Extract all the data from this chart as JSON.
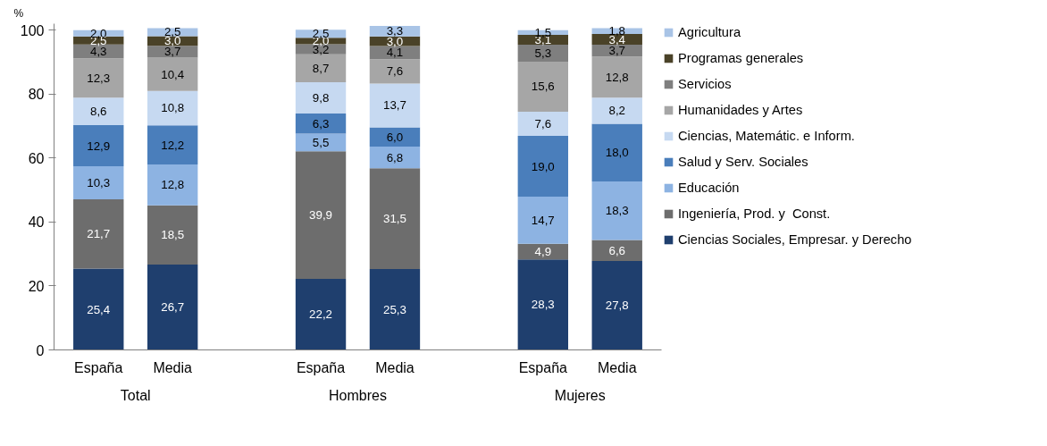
{
  "chart_data": {
    "type": "bar",
    "stacked": true,
    "ylabel": "%",
    "categories": [
      "España",
      "Media",
      null,
      "España",
      "Media",
      null,
      "España",
      "Media"
    ],
    "annotations": [
      "Total",
      "Hombres",
      "Mujeres"
    ],
    "ylim": [
      0,
      102
    ],
    "yticks": [
      0,
      20,
      40,
      60,
      80,
      100
    ],
    "grid": false,
    "legend": "right",
    "series": [
      {
        "name": "Ciencias Sociales, Empresar. y Derecho",
        "color": "#1f3f6e",
        "values": [
          25.4,
          26.7,
          null,
          22.2,
          25.3,
          null,
          28.3,
          27.8
        ],
        "value_labels": [
          "25,4",
          "26,7",
          null,
          "22,2",
          "25,3",
          null,
          "28,3",
          "27,8"
        ]
      },
      {
        "name": "Ingeniería, Prod. y  Const.",
        "color": "#6d6d6d",
        "values": [
          21.7,
          18.5,
          null,
          39.9,
          31.5,
          null,
          4.9,
          6.6
        ],
        "value_labels": [
          "21,7",
          "18,5",
          null,
          "39,9",
          "31,5",
          null,
          "4,9",
          "6,6"
        ]
      },
      {
        "name": "Educación",
        "color": "#8db3e2",
        "values": [
          10.3,
          12.8,
          null,
          5.5,
          6.8,
          null,
          14.7,
          18.3
        ],
        "value_labels": [
          "10,3",
          "12,8",
          null,
          "5,5",
          "6,8",
          null,
          "14,7",
          "18,3"
        ]
      },
      {
        "name": "Salud y Serv. Sociales",
        "color": "#4a7ebb",
        "values": [
          12.9,
          12.2,
          null,
          6.3,
          6.0,
          null,
          19.0,
          18.0
        ],
        "value_labels": [
          "12,9",
          "12,2",
          null,
          "6,3",
          "6,0",
          null,
          "19,0",
          "18,0"
        ]
      },
      {
        "name": "Ciencias, Matemátic. e Inform.",
        "color": "#c6d9f1",
        "values": [
          8.6,
          10.8,
          null,
          9.8,
          13.7,
          null,
          7.6,
          8.2
        ],
        "value_labels": [
          "8,6",
          "10,8",
          null,
          "9,8",
          "13,7",
          null,
          "7,6",
          "8,2"
        ]
      },
      {
        "name": "Humanidades y Artes",
        "color": "#a6a6a6",
        "values": [
          12.3,
          10.4,
          null,
          8.7,
          7.6,
          null,
          15.6,
          12.8
        ],
        "value_labels": [
          "12,3",
          "10,4",
          null,
          "8,7",
          "7,6",
          null,
          "15,6",
          "12,8"
        ]
      },
      {
        "name": "Servicios",
        "color": "#7f7f7f",
        "values": [
          4.3,
          3.7,
          null,
          3.2,
          4.1,
          null,
          5.3,
          3.7
        ],
        "value_labels": [
          "4,3",
          "3,7",
          null,
          "3,2",
          "4,1",
          null,
          "5,3",
          "3,7"
        ]
      },
      {
        "name": "Programas generales",
        "color": "#4a4228",
        "values": [
          2.5,
          3.0,
          null,
          2.0,
          3.0,
          null,
          3.1,
          3.4
        ],
        "value_labels": [
          "2,5",
          "3,0",
          null,
          "2,0",
          "3,0",
          null,
          "3,1",
          "3,4"
        ]
      },
      {
        "name": "Agricultura",
        "color": "#a9c4e6",
        "values": [
          2.0,
          2.5,
          null,
          2.5,
          3.3,
          null,
          1.5,
          1.8
        ],
        "value_labels": [
          "2,0",
          "2,5",
          null,
          "2,5",
          "3,3",
          null,
          "1,5",
          "1,8"
        ]
      }
    ]
  }
}
